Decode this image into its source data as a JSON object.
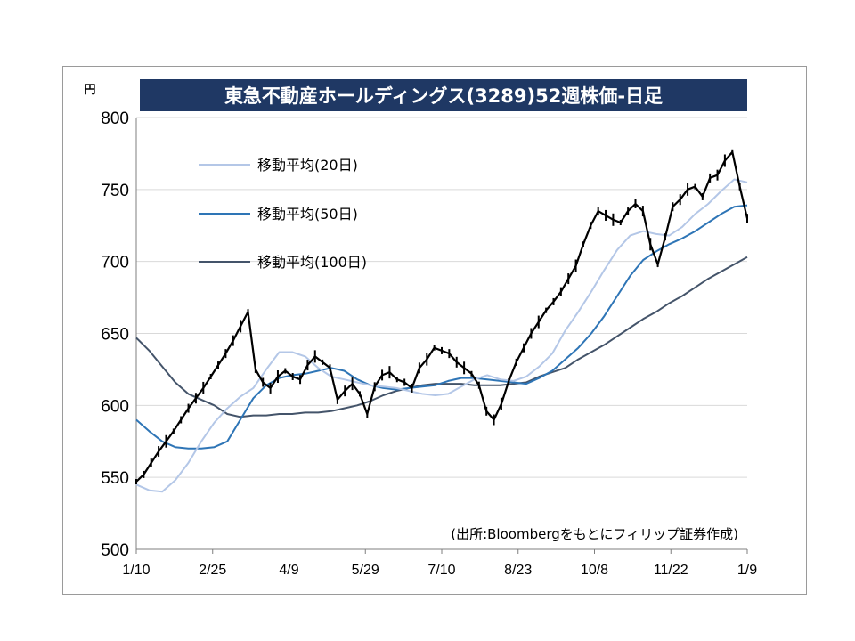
{
  "chart_data": {
    "type": "line",
    "title": "東急不動産ホールディングス(3289)52週株価-日足",
    "unit_label": "円",
    "source_note": "(出所:Bloombergをもとにフィリップ証券作成)",
    "x_tick_labels": [
      "1/10",
      "2/25",
      "4/9",
      "5/29",
      "7/10",
      "8/23",
      "10/8",
      "11/22",
      "1/9"
    ],
    "ylim": [
      500,
      800
    ],
    "y_ticks": [
      500,
      550,
      600,
      650,
      700,
      750,
      800
    ],
    "grid": true,
    "legend_position": "top-left",
    "price_series_color": "#000000",
    "series": [
      {
        "name": "移動平均(20日)",
        "color": "#b4c7e7",
        "values": [
          545,
          541,
          540,
          548,
          560,
          575,
          588,
          598,
          606,
          612,
          625,
          637,
          637,
          634,
          626,
          620,
          618,
          616,
          614,
          613,
          612,
          610,
          608,
          607,
          608,
          613,
          618,
          621,
          618,
          617,
          620,
          627,
          636,
          652,
          665,
          679,
          694,
          708,
          718,
          721,
          719,
          718,
          724,
          733,
          740,
          749,
          757,
          755
        ]
      },
      {
        "name": "移動平均(50日)",
        "color": "#2e75b6",
        "values": [
          590,
          582,
          575,
          571,
          570,
          570,
          571,
          575,
          590,
          605,
          614,
          619,
          621,
          622,
          624,
          626,
          624,
          618,
          614,
          612,
          611,
          612,
          613,
          614,
          617,
          619,
          619,
          618,
          617,
          616,
          615,
          619,
          624,
          632,
          640,
          650,
          662,
          676,
          690,
          701,
          707,
          712,
          716,
          721,
          727,
          733,
          738,
          739
        ]
      },
      {
        "name": "移動平均(100日)",
        "color": "#44546a",
        "values": [
          647,
          638,
          627,
          616,
          608,
          604,
          600,
          594,
          592,
          593,
          593,
          594,
          594,
          595,
          595,
          596,
          598,
          600,
          603,
          607,
          610,
          612,
          614,
          615,
          615,
          615,
          614,
          614,
          614,
          615,
          616,
          620,
          623,
          626,
          632,
          637,
          642,
          648,
          654,
          660,
          665,
          671,
          676,
          682,
          688,
          693,
          698,
          703
        ]
      }
    ],
    "price_series": {
      "name": "株価",
      "close": [
        547,
        552,
        560,
        568,
        575,
        582,
        590,
        598,
        605,
        612,
        620,
        628,
        636,
        645,
        655,
        665,
        625,
        616,
        612,
        620,
        624,
        620,
        618,
        628,
        634,
        630,
        626,
        604,
        610,
        615,
        608,
        594,
        613,
        621,
        623,
        618,
        616,
        612,
        626,
        632,
        640,
        638,
        636,
        630,
        626,
        622,
        614,
        596,
        590,
        601,
        617,
        630,
        640,
        650,
        658,
        666,
        672,
        679,
        688,
        697,
        712,
        725,
        735,
        732,
        729,
        727,
        735,
        740,
        735,
        712,
        698,
        717,
        738,
        743,
        750,
        752,
        745,
        758,
        760,
        770,
        776,
        752,
        730
      ]
    }
  }
}
